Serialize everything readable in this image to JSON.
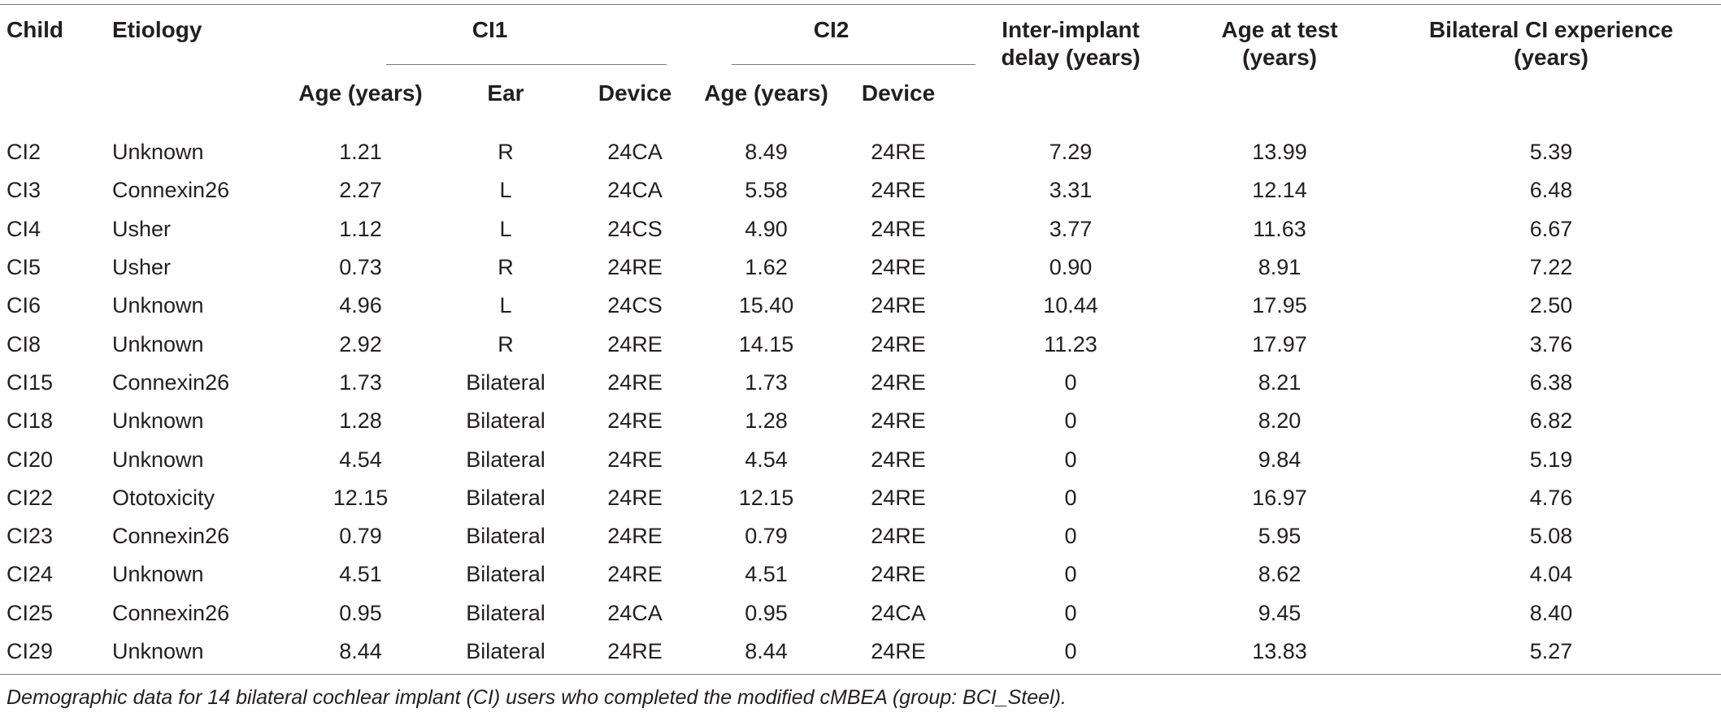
{
  "headers": {
    "child": "Child",
    "etiology": "Etiology",
    "ci1": "CI1",
    "ci2": "CI2",
    "ci1_age": "Age (years)",
    "ci1_ear": "Ear",
    "ci1_device": "Device",
    "ci2_age": "Age (years)",
    "ci2_device": "Device",
    "delay_line1": "Inter-implant",
    "delay_line2": "delay (years)",
    "test_line1": "Age at test",
    "test_line2": "(years)",
    "bil_line1": "Bilateral CI experience",
    "bil_line2": "(years)"
  },
  "rows": [
    [
      "CI2",
      "Unknown",
      "1.21",
      "R",
      "24CA",
      "8.49",
      "24RE",
      "7.29",
      "13.99",
      "5.39"
    ],
    [
      "CI3",
      "Connexin26",
      "2.27",
      "L",
      "24CA",
      "5.58",
      "24RE",
      "3.31",
      "12.14",
      "6.48"
    ],
    [
      "CI4",
      "Usher",
      "1.12",
      "L",
      "24CS",
      "4.90",
      "24RE",
      "3.77",
      "11.63",
      "6.67"
    ],
    [
      "CI5",
      "Usher",
      "0.73",
      "R",
      "24RE",
      "1.62",
      "24RE",
      "0.90",
      "8.91",
      "7.22"
    ],
    [
      "CI6",
      "Unknown",
      "4.96",
      "L",
      "24CS",
      "15.40",
      "24RE",
      "10.44",
      "17.95",
      "2.50"
    ],
    [
      "CI8",
      "Unknown",
      "2.92",
      "R",
      "24RE",
      "14.15",
      "24RE",
      "11.23",
      "17.97",
      "3.76"
    ],
    [
      "CI15",
      "Connexin26",
      "1.73",
      "Bilateral",
      "24RE",
      "1.73",
      "24RE",
      "0",
      "8.21",
      "6.38"
    ],
    [
      "CI18",
      "Unknown",
      "1.28",
      "Bilateral",
      "24RE",
      "1.28",
      "24RE",
      "0",
      "8.20",
      "6.82"
    ],
    [
      "CI20",
      "Unknown",
      "4.54",
      "Bilateral",
      "24RE",
      "4.54",
      "24RE",
      "0",
      "9.84",
      "5.19"
    ],
    [
      "CI22",
      "Ototoxicity",
      "12.15",
      "Bilateral",
      "24RE",
      "12.15",
      "24RE",
      "0",
      "16.97",
      "4.76"
    ],
    [
      "CI23",
      "Connexin26",
      "0.79",
      "Bilateral",
      "24RE",
      "0.79",
      "24RE",
      "0",
      "5.95",
      "5.08"
    ],
    [
      "CI24",
      "Unknown",
      "4.51",
      "Bilateral",
      "24RE",
      "4.51",
      "24RE",
      "0",
      "8.62",
      "4.04"
    ],
    [
      "CI25",
      "Connexin26",
      "0.95",
      "Bilateral",
      "24CA",
      "0.95",
      "24CA",
      "0",
      "9.45",
      "8.40"
    ],
    [
      "CI29",
      "Unknown",
      "8.44",
      "Bilateral",
      "24RE",
      "8.44",
      "24RE",
      "0",
      "13.83",
      "5.27"
    ]
  ],
  "caption": "Demographic data for 14 bilateral cochlear implant (CI) users who completed the modified cMBEA (group: BCI_Steel)."
}
